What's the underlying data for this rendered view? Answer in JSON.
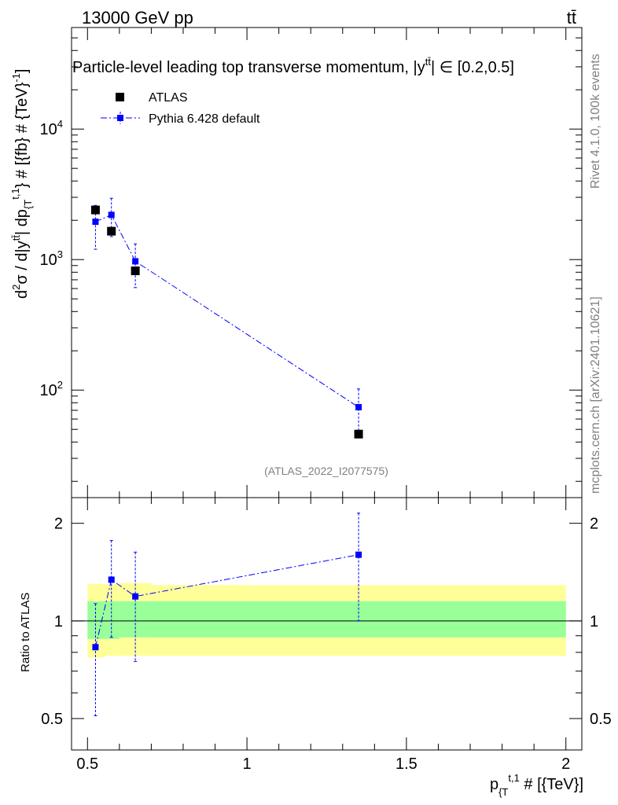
{
  "header": {
    "energy_label": "13000 GeV pp",
    "process_label": "tt̄"
  },
  "side_labels": {
    "rivet": "Rivet 4.1.0,  100k events",
    "mcplots": "mcplots.cern.ch [arXiv:2401.10621]"
  },
  "chart_data": {
    "type": "scatter",
    "title": "Particle-level leading top transverse momentum, |y^{tt̄}| ∈ [0.2,0.5]",
    "title_parts": {
      "main": "Particle-level leading top transverse momentum, |y",
      "sup": "tt̄",
      "tail": "| ∈ [0.2,0.5]"
    },
    "analysis_id": "(ATLAS_2022_I2077575)",
    "xlabel": "p_{T}^{t,1} # [{TeV}]",
    "xlabel_parts": {
      "main": "p",
      "sub": "{T",
      "sup": "t,1",
      "tail": " # [{TeV}]"
    },
    "ylabel": "d²σ / d|y^{tt̄}| dp_{T}^{t,1} # [{fb} # {TeV}^-1]",
    "ylabel_parts": {
      "a": "d",
      "a_sup": "2",
      "b": "σ / d|y",
      "b_sup": "tt̄",
      "c": "| dp",
      "c_sub": "{T",
      "c_sup": "t,1",
      "d": "} # [{fb} # {TeV}",
      "d_sup": "-1",
      "e": "]"
    },
    "ratio_ylabel": "Ratio to ATLAS",
    "xlim": [
      0.45,
      2.05
    ],
    "ylim": [
      15,
      60000
    ],
    "yscale": "log",
    "ratio_ylim": [
      0.4,
      2.4
    ],
    "ratio_yscale": "log",
    "x_ticks": [
      {
        "value": 0.5,
        "label": "0.5"
      },
      {
        "value": 1,
        "label": "1"
      },
      {
        "value": 1.5,
        "label": "1.5"
      },
      {
        "value": 2,
        "label": "2"
      }
    ],
    "y_ticks": [
      {
        "value": 100,
        "base": "10",
        "exp": "2"
      },
      {
        "value": 1000,
        "base": "10",
        "exp": "3"
      },
      {
        "value": 10000,
        "base": "10",
        "exp": "4"
      }
    ],
    "ratio_ticks": [
      {
        "value": 0.5,
        "label": "0.5"
      },
      {
        "value": 1,
        "label": "1"
      },
      {
        "value": 2,
        "label": "2"
      }
    ],
    "legend": [
      {
        "name": "ATLAS",
        "color": "#000000",
        "marker": "square"
      },
      {
        "name": "Pythia 6.428 default",
        "color": "#0000ff",
        "marker": "square",
        "line": "dash-dot"
      }
    ],
    "bins": [
      {
        "lo": 0.5,
        "hi": 0.55
      },
      {
        "lo": 0.55,
        "hi": 0.6
      },
      {
        "lo": 0.6,
        "hi": 0.7
      },
      {
        "lo": 0.7,
        "hi": 2.0
      }
    ],
    "series": [
      {
        "name": "ATLAS",
        "x": [
          0.525,
          0.575,
          0.65,
          1.35
        ],
        "y": [
          2400,
          1650,
          820,
          46
        ],
        "stat_band_ratio": [
          [
            0.88,
            1.15
          ],
          [
            0.88,
            1.15
          ],
          [
            0.89,
            1.15
          ],
          [
            0.89,
            1.15
          ]
        ],
        "total_band_ratio": [
          [
            0.77,
            1.3
          ],
          [
            0.78,
            1.3
          ],
          [
            0.78,
            1.31
          ],
          [
            0.78,
            1.29
          ]
        ]
      },
      {
        "name": "Pythia 6.428 default",
        "x": [
          0.525,
          0.575,
          0.65,
          1.35
        ],
        "y": [
          1950,
          2200,
          970,
          74
        ],
        "y_err_lo": [
          1200,
          1500,
          610,
          46
        ],
        "y_err_hi": [
          2600,
          2950,
          1320,
          102
        ],
        "ratio": [
          0.83,
          1.34,
          1.19,
          1.6
        ],
        "ratio_err_lo": [
          0.51,
          0.89,
          0.75,
          1.0
        ],
        "ratio_err_hi": [
          1.13,
          1.77,
          1.63,
          2.15
        ]
      }
    ]
  }
}
